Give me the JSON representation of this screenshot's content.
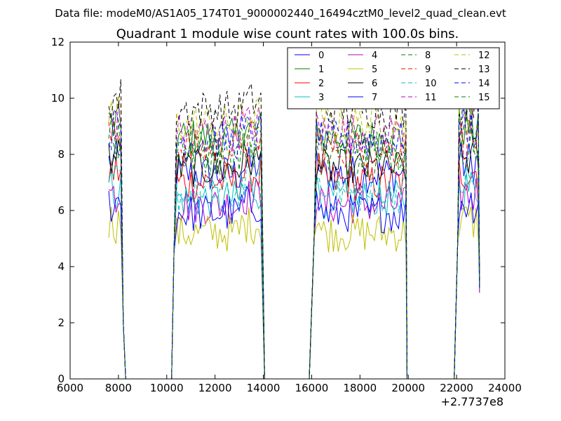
{
  "header": {
    "data_file": "Data file: modeM0/AS1A05_174T01_9000002440_16494cztM0_level2_quad_clean.evt"
  },
  "chart_data": {
    "type": "line",
    "title": "Quadrant 1 module wise count rates with 100.0s bins.",
    "xlabel": "",
    "ylabel": "",
    "x_offset_label": "+2.7737e8",
    "xlim": [
      6000,
      24000
    ],
    "ylim": [
      0,
      12
    ],
    "x_ticks": [
      "6000",
      "8000",
      "10000",
      "12000",
      "14000",
      "16000",
      "18000",
      "20000",
      "22000",
      "24000"
    ],
    "y_ticks": [
      "0",
      "2",
      "4",
      "6",
      "8",
      "10",
      "12"
    ],
    "grid": false,
    "legend_position": "top-right",
    "segments": [
      [
        7600,
        8100
      ],
      [
        10400,
        13950
      ],
      [
        16200,
        19900
      ],
      [
        22100,
        22900
      ]
    ],
    "drop_segments": [
      [
        8100,
        8300
      ],
      [
        10200,
        10400
      ],
      [
        13950,
        14100
      ],
      [
        16000,
        16200
      ],
      [
        19900,
        20050
      ],
      [
        22000,
        22100
      ],
      [
        22900,
        22950
      ]
    ],
    "series": [
      {
        "name": "0",
        "level": 7.3,
        "color": "#0000ff",
        "dash": "solid"
      },
      {
        "name": "1",
        "level": 8.6,
        "color": "#008000",
        "dash": "solid"
      },
      {
        "name": "2",
        "level": 7.0,
        "color": "#ff0000",
        "dash": "solid"
      },
      {
        "name": "3",
        "level": 6.4,
        "color": "#00bfbf",
        "dash": "solid"
      },
      {
        "name": "4",
        "level": 6.2,
        "color": "#bf00bf",
        "dash": "solid"
      },
      {
        "name": "5",
        "level": 5.2,
        "color": "#bfbf00",
        "dash": "solid"
      },
      {
        "name": "6",
        "level": 7.5,
        "color": "#000000",
        "dash": "solid"
      },
      {
        "name": "7",
        "level": 5.9,
        "color": "#0000ff",
        "dash": "solid"
      },
      {
        "name": "8",
        "level": 7.9,
        "color": "#008000",
        "dash": "dashed"
      },
      {
        "name": "9",
        "level": 8.2,
        "color": "#ff0000",
        "dash": "dashed"
      },
      {
        "name": "10",
        "level": 6.6,
        "color": "#00bfbf",
        "dash": "dashed"
      },
      {
        "name": "11",
        "level": 8.8,
        "color": "#bf00bf",
        "dash": "dashed"
      },
      {
        "name": "12",
        "level": 9.1,
        "color": "#bfbf00",
        "dash": "dashed"
      },
      {
        "name": "13",
        "level": 9.6,
        "color": "#000000",
        "dash": "dashed"
      },
      {
        "name": "14",
        "level": 8.5,
        "color": "#0000ff",
        "dash": "dashed"
      },
      {
        "name": "15",
        "level": 8.3,
        "color": "#008000",
        "dash": "dashed"
      }
    ]
  }
}
